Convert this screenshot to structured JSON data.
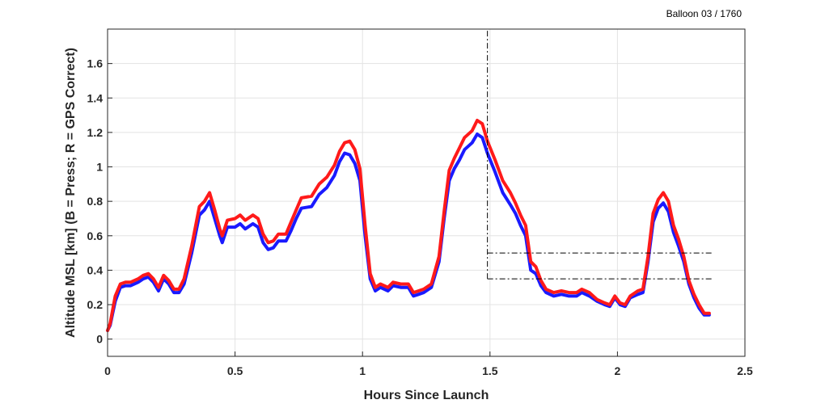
{
  "chart_data": {
    "type": "line",
    "annotation_top_right": "Balloon 03 / 1760",
    "xlabel": "Hours Since Launch",
    "ylabel": "Altitude MSL [km]   (B = Press; R = GPS Correct)",
    "xlim": [
      0,
      2.5
    ],
    "ylim": [
      -0.1,
      1.8
    ],
    "xticks": [
      0,
      0.5,
      1,
      1.5,
      2,
      2.5
    ],
    "xtick_labels": [
      "0",
      "0.5",
      "1",
      "1.5",
      "2",
      "2.5"
    ],
    "yticks": [
      0,
      0.2,
      0.4,
      0.6,
      0.8,
      1,
      1.2,
      1.4,
      1.6
    ],
    "ytick_labels": [
      "0",
      "0.2",
      "0.4",
      "0.6",
      "0.8",
      "1",
      "1.2",
      "1.4",
      "1.6"
    ],
    "grid": true,
    "colors": {
      "pressure": "#1a1aff",
      "gps": "#ff1a1a",
      "reference": "#000000"
    },
    "series": [
      {
        "key": "pressure",
        "x": [
          0,
          0.01,
          0.02,
          0.03,
          0.05,
          0.07,
          0.09,
          0.12,
          0.14,
          0.16,
          0.18,
          0.2,
          0.22,
          0.24,
          0.26,
          0.28,
          0.3,
          0.33,
          0.36,
          0.38,
          0.4,
          0.42,
          0.44,
          0.45,
          0.47,
          0.5,
          0.52,
          0.54,
          0.57,
          0.59,
          0.61,
          0.63,
          0.65,
          0.67,
          0.7,
          0.72,
          0.74,
          0.76,
          0.8,
          0.83,
          0.86,
          0.89,
          0.91,
          0.93,
          0.95,
          0.97,
          0.99,
          1.01,
          1.03,
          1.05,
          1.07,
          1.1,
          1.12,
          1.15,
          1.18,
          1.2,
          1.22,
          1.24,
          1.27,
          1.3,
          1.32,
          1.34,
          1.36,
          1.38,
          1.4,
          1.43,
          1.45,
          1.47,
          1.49,
          1.52,
          1.55,
          1.58,
          1.6,
          1.62,
          1.64,
          1.66,
          1.68,
          1.7,
          1.72,
          1.75,
          1.78,
          1.81,
          1.84,
          1.86,
          1.89,
          1.92,
          1.95,
          1.97,
          1.99,
          2.01,
          2.03,
          2.05,
          2.08,
          2.1,
          2.12,
          2.14,
          2.16,
          2.18,
          2.2,
          2.22,
          2.24,
          2.26,
          2.28,
          2.3,
          2.32,
          2.34,
          2.36
        ],
        "y": [
          0.05,
          0.08,
          0.15,
          0.22,
          0.3,
          0.31,
          0.31,
          0.33,
          0.35,
          0.36,
          0.33,
          0.28,
          0.35,
          0.32,
          0.27,
          0.27,
          0.32,
          0.5,
          0.72,
          0.75,
          0.8,
          0.7,
          0.6,
          0.56,
          0.65,
          0.65,
          0.67,
          0.64,
          0.67,
          0.65,
          0.56,
          0.52,
          0.53,
          0.57,
          0.57,
          0.63,
          0.7,
          0.76,
          0.77,
          0.84,
          0.88,
          0.95,
          1.03,
          1.08,
          1.07,
          1.02,
          0.92,
          0.6,
          0.35,
          0.28,
          0.3,
          0.28,
          0.31,
          0.3,
          0.3,
          0.25,
          0.26,
          0.27,
          0.3,
          0.45,
          0.7,
          0.92,
          0.99,
          1.04,
          1.1,
          1.14,
          1.19,
          1.17,
          1.08,
          0.97,
          0.85,
          0.78,
          0.73,
          0.66,
          0.6,
          0.4,
          0.38,
          0.31,
          0.27,
          0.25,
          0.26,
          0.25,
          0.25,
          0.27,
          0.25,
          0.22,
          0.2,
          0.19,
          0.24,
          0.2,
          0.19,
          0.24,
          0.26,
          0.27,
          0.45,
          0.68,
          0.76,
          0.79,
          0.74,
          0.62,
          0.54,
          0.45,
          0.32,
          0.24,
          0.18,
          0.14,
          0.14
        ]
      },
      {
        "key": "gps",
        "x": [
          0,
          0.01,
          0.02,
          0.03,
          0.05,
          0.07,
          0.09,
          0.12,
          0.14,
          0.16,
          0.18,
          0.2,
          0.22,
          0.24,
          0.26,
          0.28,
          0.3,
          0.33,
          0.36,
          0.38,
          0.4,
          0.42,
          0.44,
          0.45,
          0.47,
          0.5,
          0.52,
          0.54,
          0.57,
          0.59,
          0.61,
          0.63,
          0.65,
          0.67,
          0.7,
          0.72,
          0.74,
          0.76,
          0.8,
          0.83,
          0.86,
          0.89,
          0.91,
          0.93,
          0.95,
          0.97,
          0.99,
          1.01,
          1.03,
          1.05,
          1.07,
          1.1,
          1.12,
          1.15,
          1.18,
          1.2,
          1.22,
          1.24,
          1.27,
          1.3,
          1.32,
          1.34,
          1.36,
          1.38,
          1.4,
          1.43,
          1.45,
          1.47,
          1.49,
          1.52,
          1.55,
          1.58,
          1.6,
          1.62,
          1.64,
          1.66,
          1.68,
          1.7,
          1.72,
          1.75,
          1.78,
          1.81,
          1.84,
          1.86,
          1.89,
          1.92,
          1.95,
          1.97,
          1.99,
          2.01,
          2.03,
          2.05,
          2.08,
          2.1,
          2.12,
          2.14,
          2.16,
          2.18,
          2.2,
          2.22,
          2.24,
          2.26,
          2.28,
          2.3,
          2.32,
          2.34,
          2.36
        ],
        "y": [
          0.05,
          0.09,
          0.17,
          0.25,
          0.32,
          0.33,
          0.33,
          0.35,
          0.37,
          0.38,
          0.35,
          0.3,
          0.37,
          0.34,
          0.29,
          0.29,
          0.35,
          0.54,
          0.77,
          0.8,
          0.85,
          0.75,
          0.64,
          0.6,
          0.69,
          0.7,
          0.72,
          0.69,
          0.72,
          0.7,
          0.61,
          0.56,
          0.57,
          0.61,
          0.61,
          0.68,
          0.75,
          0.82,
          0.83,
          0.9,
          0.94,
          1.01,
          1.09,
          1.14,
          1.15,
          1.1,
          0.99,
          0.66,
          0.38,
          0.3,
          0.32,
          0.3,
          0.33,
          0.32,
          0.32,
          0.27,
          0.28,
          0.29,
          0.32,
          0.48,
          0.74,
          0.98,
          1.05,
          1.11,
          1.17,
          1.21,
          1.27,
          1.25,
          1.15,
          1.04,
          0.92,
          0.85,
          0.79,
          0.72,
          0.66,
          0.45,
          0.42,
          0.34,
          0.29,
          0.27,
          0.28,
          0.27,
          0.27,
          0.29,
          0.27,
          0.23,
          0.21,
          0.2,
          0.25,
          0.21,
          0.2,
          0.25,
          0.28,
          0.29,
          0.48,
          0.73,
          0.81,
          0.85,
          0.8,
          0.66,
          0.58,
          0.48,
          0.34,
          0.26,
          0.2,
          0.15,
          0.15
        ]
      }
    ],
    "reference_lines": [
      {
        "orientation": "vertical",
        "x": 1.49,
        "y": [
          0.35,
          1.8
        ]
      },
      {
        "orientation": "horizontal",
        "y": 0.5,
        "x": [
          1.49,
          2.37
        ]
      },
      {
        "orientation": "horizontal",
        "y": 0.35,
        "x": [
          1.49,
          2.37
        ]
      }
    ]
  }
}
